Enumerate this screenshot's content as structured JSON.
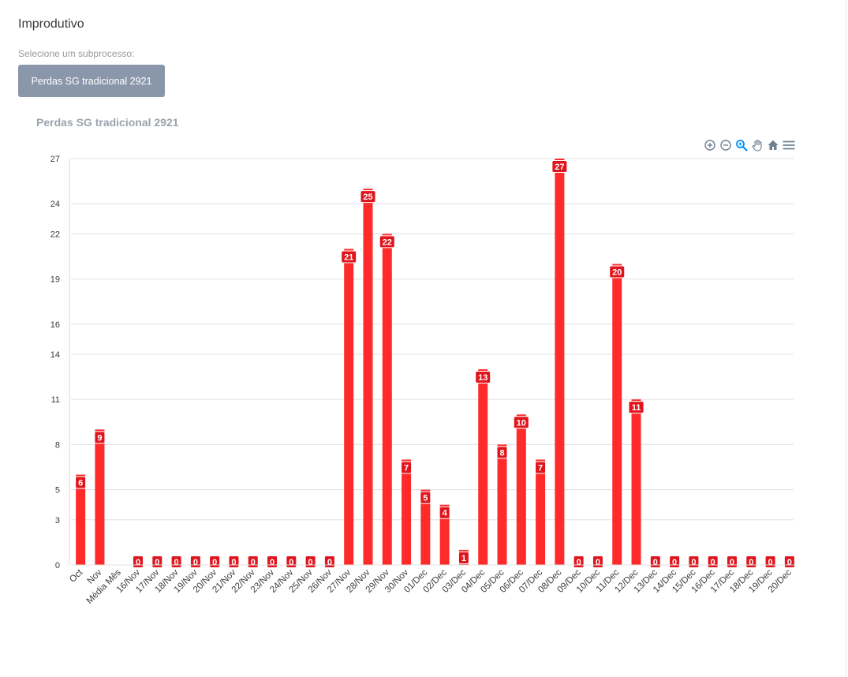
{
  "page": {
    "title": "Improdutivo",
    "select_label": "Selecione um subprocesso:",
    "subprocess_button": "Perdas SG tradicional 2921"
  },
  "toolbar": {
    "icons": [
      "zoom-in-icon",
      "zoom-out-icon",
      "selection-zoom-icon",
      "pan-icon",
      "home-icon",
      "menu-icon"
    ]
  },
  "colors": {
    "bar": "#ff2a2a",
    "label_bg": "#e0141c",
    "active_tool": "#008ffb",
    "tool": "#6e8192"
  },
  "chart_data": {
    "type": "bar",
    "title": "Perdas SG tradicional 2921",
    "xlabel": "",
    "ylabel": "",
    "ylim": [
      0,
      27
    ],
    "yticks": [
      "0",
      "3",
      "5",
      "8",
      "11",
      "14",
      "16",
      "19",
      "22",
      "24",
      "27"
    ],
    "grid": true,
    "categories": [
      "Oct",
      "Nov",
      "Média Mês",
      "16/Nov",
      "17/Nov",
      "18/Nov",
      "19/Nov",
      "20/Nov",
      "21/Nov",
      "22/Nov",
      "23/Nov",
      "24/Nov",
      "25/Nov",
      "26/Nov",
      "27/Nov",
      "28/Nov",
      "29/Nov",
      "30/Nov",
      "01/Dec",
      "02/Dec",
      "03/Dec",
      "04/Dec",
      "05/Dec",
      "06/Dec",
      "07/Dec",
      "08/Dec",
      "09/Dec",
      "10/Dec",
      "11/Dec",
      "12/Dec",
      "13/Dec",
      "14/Dec",
      "15/Dec",
      "16/Dec",
      "17/Dec",
      "18/Dec",
      "19/Dec",
      "20/Dec"
    ],
    "values": [
      6,
      9,
      null,
      0,
      0,
      0,
      0,
      0,
      0,
      0,
      0,
      0,
      0,
      0,
      21,
      25,
      22,
      7,
      5,
      4,
      1,
      13,
      8,
      10,
      7,
      27,
      0,
      0,
      20,
      11,
      0,
      0,
      0,
      0,
      0,
      0,
      0,
      0
    ]
  }
}
